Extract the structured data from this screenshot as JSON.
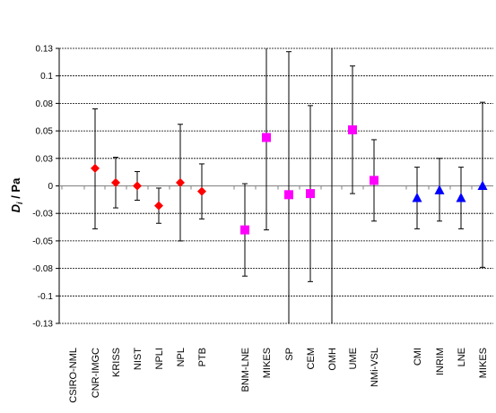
{
  "chart_data": {
    "type": "scatter",
    "ylabel": {
      "main": "D",
      "sub": "i",
      "rest": " / Pa"
    },
    "ylim": [
      -0.125,
      0.125
    ],
    "yticks": [
      0.13,
      0.1,
      0.08,
      0.05,
      0.03,
      0.0,
      -0.03,
      -0.05,
      -0.08,
      -0.1,
      -0.13
    ],
    "ytick_values": [
      0.125,
      0.1,
      0.075,
      0.05,
      0.025,
      0,
      -0.025,
      -0.05,
      -0.075,
      -0.1,
      -0.125
    ],
    "grid": true,
    "legend": "none",
    "colors": {
      "red": "#ff0000",
      "magenta": "#ff00ff",
      "blue": "#0000ff"
    },
    "categories": [
      "CSIRO-NML",
      "CNR-IMGC",
      "KRISS",
      "NIST",
      "NPLI",
      "NPL",
      "PTB",
      "BNM-LNE",
      "MIKES",
      "SP",
      "CEM",
      "OMH",
      "UME",
      "NMi-VSL",
      "CMI",
      "INRIM",
      "LNE",
      "MIKES"
    ],
    "points": [
      {
        "label": "CSIRO-NML",
        "value": null,
        "err_low": null,
        "err_high": null,
        "marker": "none",
        "color": "none"
      },
      {
        "label": "CNR-IMGC",
        "value": 0.016,
        "err_low": -0.039,
        "err_high": 0.07,
        "marker": "diamond",
        "color": "#ff0000"
      },
      {
        "label": "KRISS",
        "value": 0.003,
        "err_low": -0.02,
        "err_high": 0.026,
        "marker": "diamond",
        "color": "#ff0000"
      },
      {
        "label": "NIST",
        "value": 0.0,
        "err_low": -0.013,
        "err_high": 0.013,
        "marker": "diamond",
        "color": "#ff0000"
      },
      {
        "label": "NPLI",
        "value": -0.018,
        "err_low": -0.034,
        "err_high": -0.002,
        "marker": "diamond",
        "color": "#ff0000"
      },
      {
        "label": "NPL",
        "value": 0.003,
        "err_low": -0.05,
        "err_high": 0.056,
        "marker": "diamond",
        "color": "#ff0000"
      },
      {
        "label": "PTB",
        "value": -0.005,
        "err_low": -0.03,
        "err_high": 0.02,
        "marker": "diamond",
        "color": "#ff0000"
      },
      {
        "label": "BNM-LNE",
        "value": -0.04,
        "err_low": -0.082,
        "err_high": 0.002,
        "marker": "square",
        "color": "#ff00ff"
      },
      {
        "label": "MIKES",
        "value": 0.044,
        "err_low": -0.04,
        "err_high": 0.125,
        "marker": "square",
        "color": "#ff00ff"
      },
      {
        "label": "SP",
        "value": -0.008,
        "err_low": -0.125,
        "err_high": 0.122,
        "marker": "square",
        "color": "#ff00ff"
      },
      {
        "label": "CEM",
        "value": -0.007,
        "err_low": -0.087,
        "err_high": 0.073,
        "marker": "square",
        "color": "#ff00ff"
      },
      {
        "label": "OMH",
        "value": null,
        "err_low": -0.125,
        "err_high": 0.125,
        "marker": "none",
        "color": "none"
      },
      {
        "label": "UME",
        "value": 0.051,
        "err_low": -0.007,
        "err_high": 0.109,
        "marker": "square",
        "color": "#ff00ff"
      },
      {
        "label": "NMi-VSL",
        "value": 0.005,
        "err_low": -0.032,
        "err_high": 0.042,
        "marker": "square",
        "color": "#ff00ff"
      },
      {
        "label": "CMI",
        "value": -0.011,
        "err_low": -0.039,
        "err_high": 0.017,
        "marker": "triangle",
        "color": "#0000ff"
      },
      {
        "label": "INRIM",
        "value": -0.004,
        "err_low": -0.032,
        "err_high": 0.025,
        "marker": "triangle",
        "color": "#0000ff"
      },
      {
        "label": "LNE",
        "value": -0.011,
        "err_low": -0.039,
        "err_high": 0.017,
        "marker": "triangle",
        "color": "#0000ff"
      },
      {
        "label": "MIKES",
        "value": 0.0,
        "err_low": -0.074,
        "err_high": 0.076,
        "marker": "triangle",
        "color": "#0000ff"
      }
    ]
  }
}
